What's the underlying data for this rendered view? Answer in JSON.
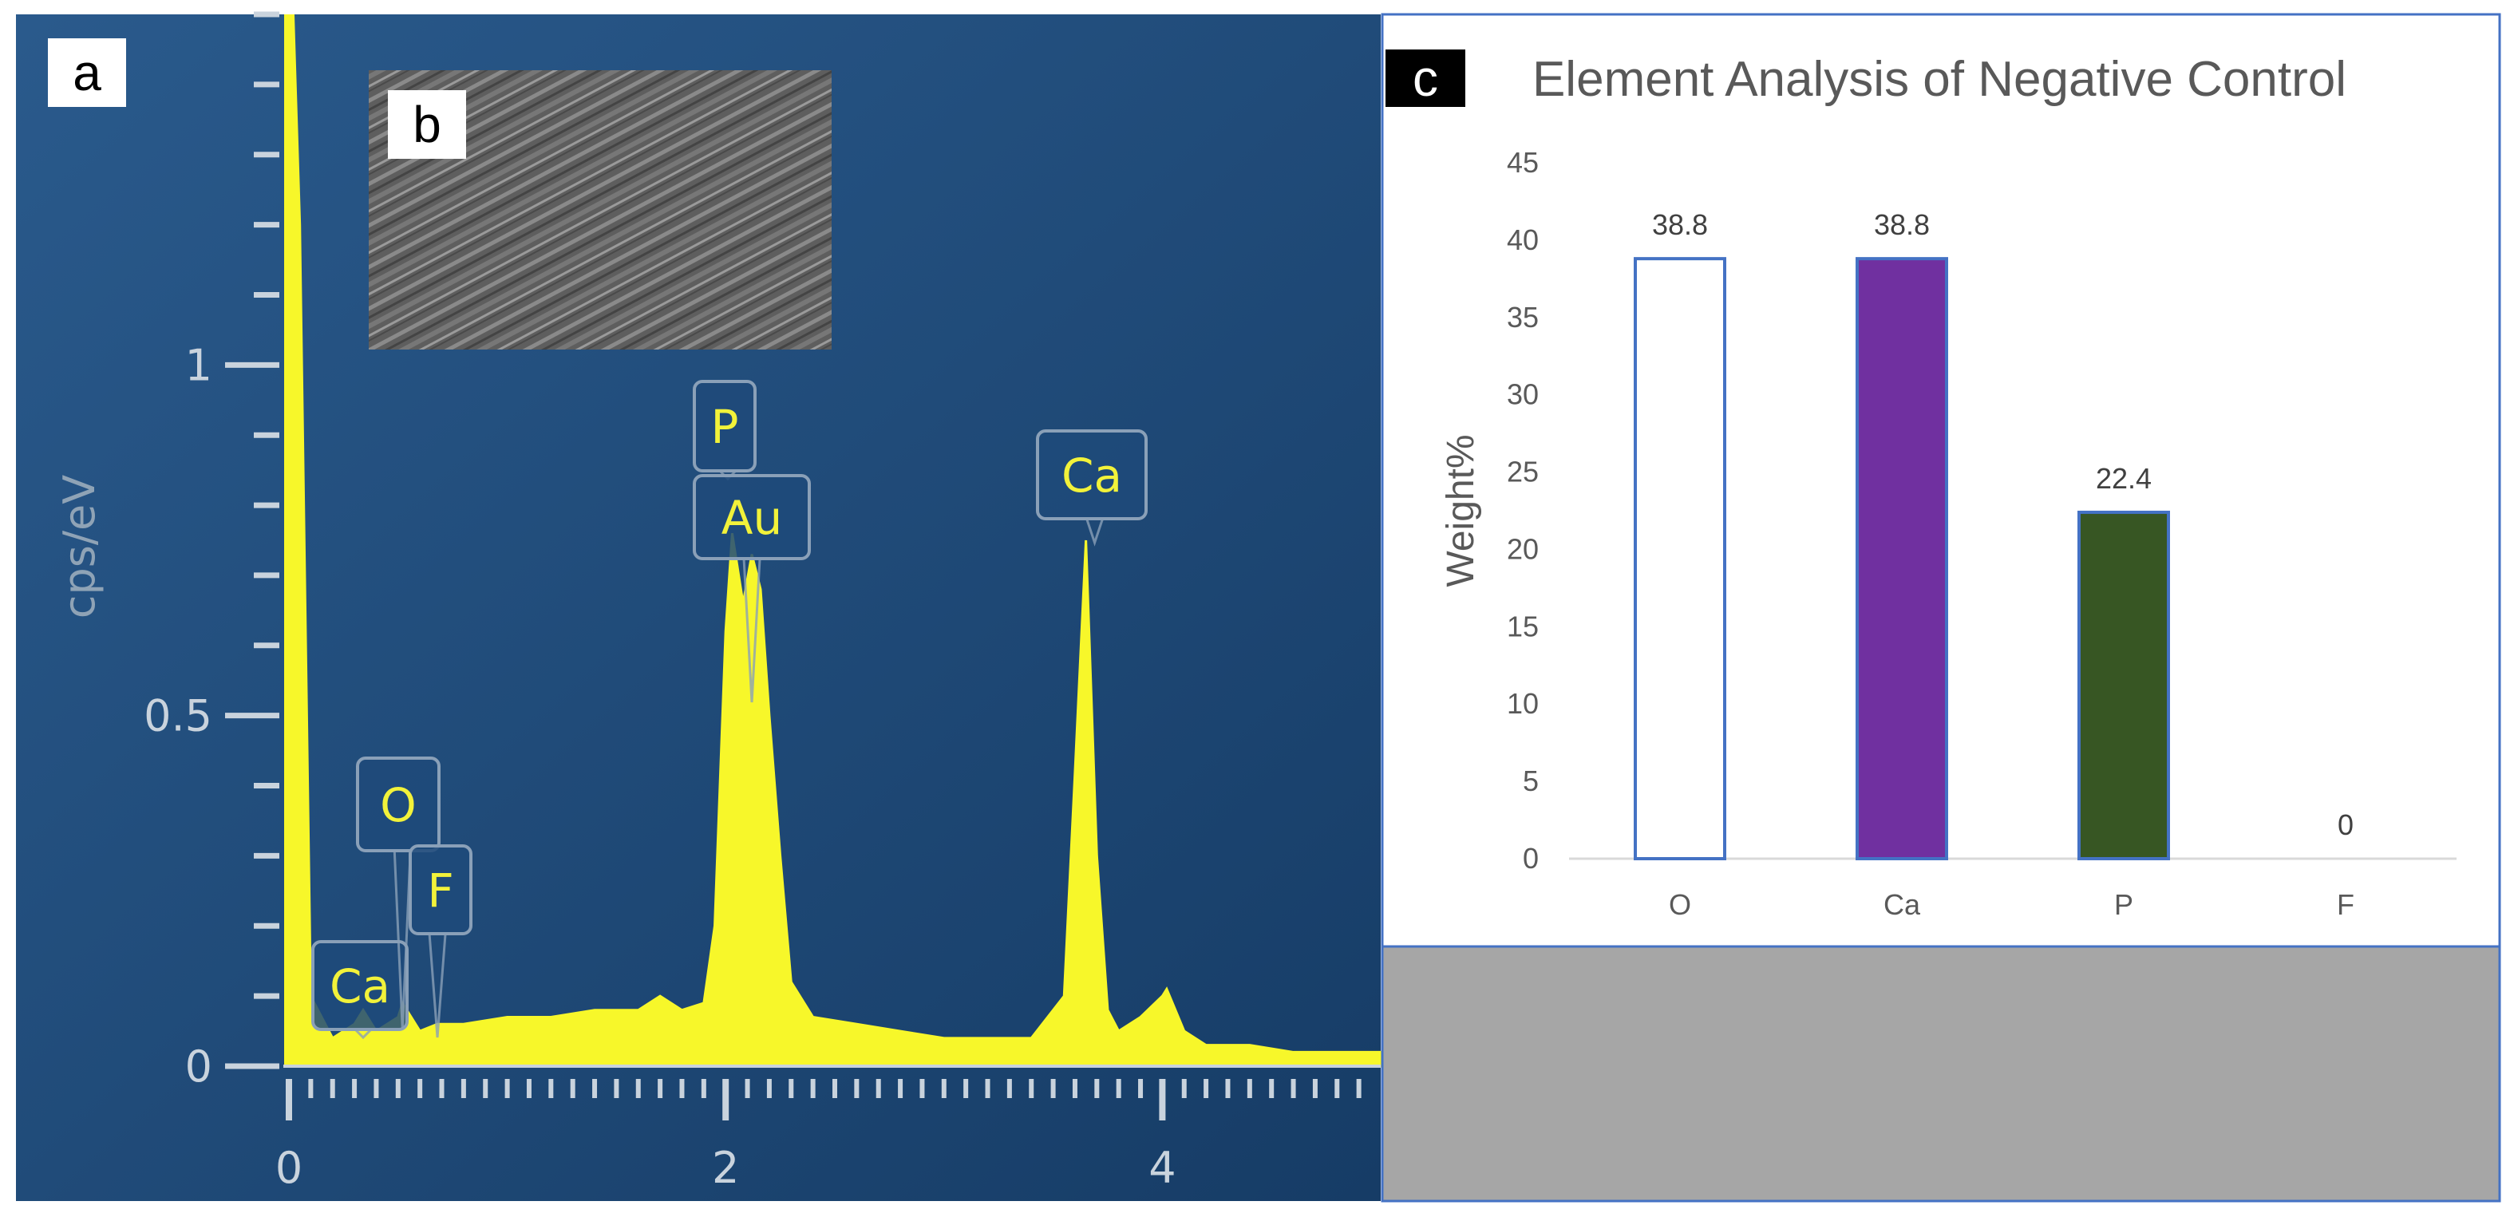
{
  "panels": {
    "a": {
      "letter": "a"
    },
    "b": {
      "letter": "b"
    },
    "c": {
      "letter": "c"
    }
  },
  "chart_data": [
    {
      "type": "line",
      "id": "eds-spectrum",
      "ylabel": "cps/eV",
      "xlabel": "",
      "xlim": [
        0,
        5
      ],
      "ylim": [
        0,
        1.5
      ],
      "x_tick_labels": [
        "0",
        "2",
        "4"
      ],
      "x_tick_values": [
        0,
        2,
        4
      ],
      "y_tick_labels": [
        "0",
        "0.5",
        "1"
      ],
      "y_tick_values": [
        0,
        0.5,
        1
      ],
      "colors": {
        "background": "#1f4a7a",
        "trace": "#f7f72a",
        "axis": "#c9d3dd"
      },
      "x": [
        0.02,
        0.05,
        0.1,
        0.2,
        0.3,
        0.34,
        0.4,
        0.5,
        0.52,
        0.6,
        0.68,
        0.8,
        1.0,
        1.2,
        1.4,
        1.6,
        1.7,
        1.8,
        1.9,
        1.95,
        2.0,
        2.03,
        2.08,
        2.12,
        2.16,
        2.2,
        2.25,
        2.3,
        2.4,
        2.6,
        2.8,
        3.0,
        3.2,
        3.4,
        3.55,
        3.6,
        3.65,
        3.7,
        3.75,
        3.8,
        3.9,
        4.0,
        4.02,
        4.1,
        4.2,
        4.4,
        4.6,
        4.8,
        5.0
      ],
      "y": [
        1.5,
        1.2,
        0.1,
        0.04,
        0.06,
        0.08,
        0.05,
        0.07,
        0.09,
        0.05,
        0.06,
        0.06,
        0.07,
        0.07,
        0.08,
        0.08,
        0.1,
        0.08,
        0.09,
        0.2,
        0.62,
        0.76,
        0.66,
        0.73,
        0.68,
        0.5,
        0.3,
        0.12,
        0.07,
        0.06,
        0.05,
        0.04,
        0.04,
        0.04,
        0.1,
        0.42,
        0.75,
        0.3,
        0.08,
        0.05,
        0.07,
        0.1,
        0.11,
        0.05,
        0.03,
        0.03,
        0.02,
        0.02,
        0.02
      ],
      "peaks": [
        {
          "label": "Ca",
          "energy": 0.34
        },
        {
          "label": "O",
          "energy": 0.52
        },
        {
          "label": "F",
          "energy": 0.68
        },
        {
          "label": "P",
          "energy": 2.01
        },
        {
          "label": "Au",
          "energy": 2.12
        },
        {
          "label": "Ca",
          "energy": 3.69
        }
      ]
    },
    {
      "type": "bar",
      "id": "element-analysis",
      "title": "Element Analysis of Negative Control",
      "xlabel": "",
      "ylabel": "Weight%",
      "categories": [
        "O",
        "Ca",
        "P",
        "F"
      ],
      "values": [
        38.8,
        38.8,
        22.4,
        0
      ],
      "data_labels": [
        "38.8",
        "38.8",
        "22.4",
        "0"
      ],
      "ylim": [
        0,
        45
      ],
      "y_tick_labels": [
        "0",
        "5",
        "10",
        "15",
        "20",
        "25",
        "30",
        "35",
        "40",
        "45"
      ],
      "bar_fills": [
        "#ffffff",
        "#7030a0",
        "#375623",
        "#ffffff"
      ],
      "bar_edge": "#4472c4",
      "grid": false
    }
  ]
}
